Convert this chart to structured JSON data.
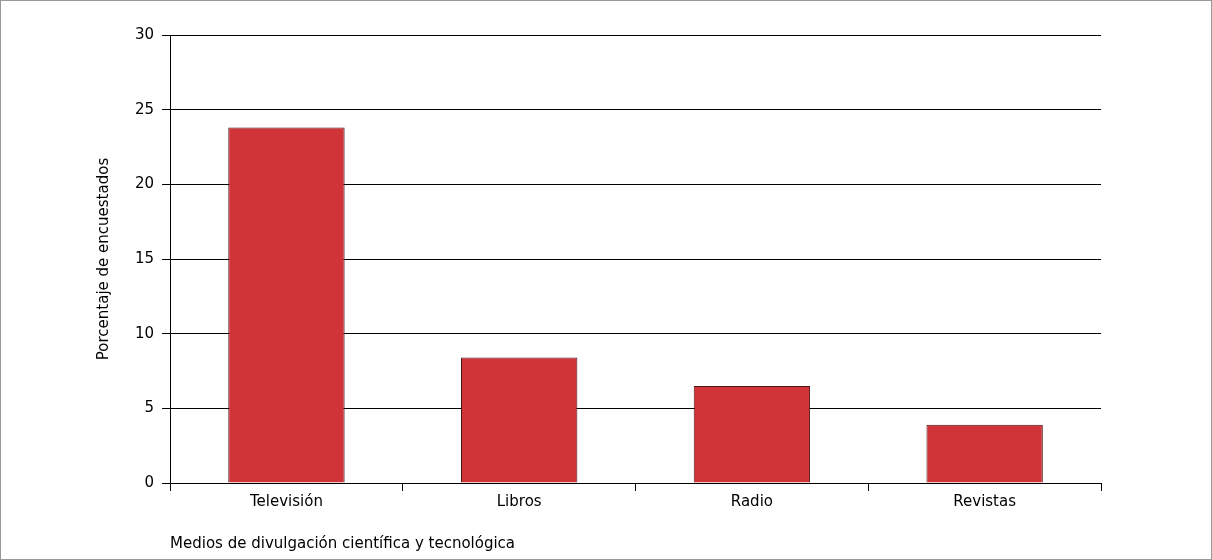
{
  "chart_data": {
    "type": "bar",
    "xlabel": "Medios de divulgación científica y tecnológica",
    "ylabel": "Porcentaje de encuestados",
    "categories": [
      "Televisión",
      "Libros",
      "Radio",
      "Revistas"
    ],
    "values": [
      23.8,
      8.4,
      6.5,
      3.9
    ],
    "color": "#d03439",
    "ylim": [
      0,
      30
    ],
    "yticks": [
      0,
      5,
      10,
      15,
      20,
      25,
      30
    ],
    "grid": "y",
    "legend": false
  }
}
